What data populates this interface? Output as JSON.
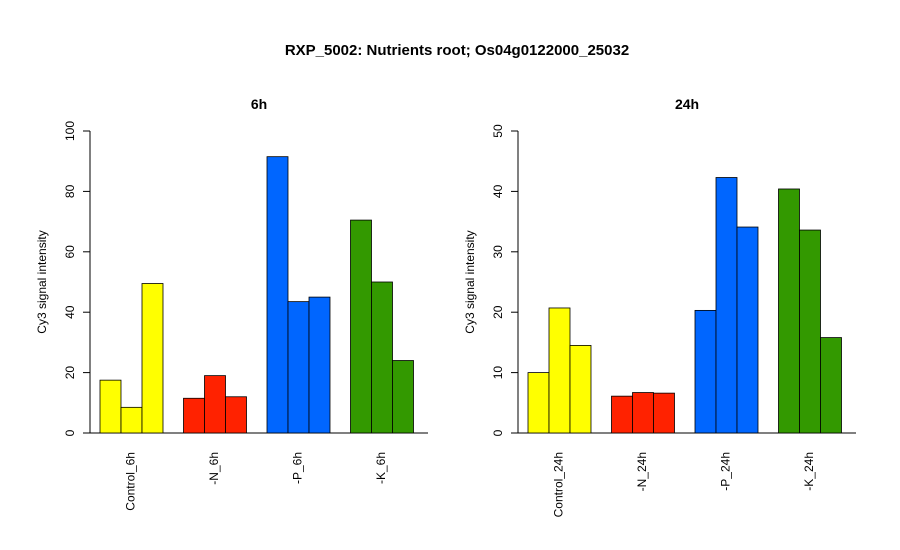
{
  "title": "RXP_5002: Nutrients root; Os04g0122000_25032",
  "chart_data": [
    {
      "type": "bar",
      "title": "6h",
      "ylabel": "Cy3 signal intensity",
      "xlabel": "",
      "ylim": [
        0,
        100
      ],
      "yticks": [
        0,
        20,
        40,
        60,
        80,
        100
      ],
      "groups": [
        {
          "label": "Control_6h",
          "color": "#ffff00",
          "values": [
            17.5,
            8.5,
            49.5
          ]
        },
        {
          "label": "-N_6h",
          "color": "#ff2200",
          "values": [
            11.5,
            19,
            12
          ]
        },
        {
          "label": "-P_6h",
          "color": "#0066ff",
          "values": [
            91.5,
            43.5,
            45
          ]
        },
        {
          "label": "-K_6h",
          "color": "#339900",
          "values": [
            70.5,
            50,
            24
          ]
        }
      ]
    },
    {
      "type": "bar",
      "title": "24h",
      "ylabel": "Cy3 signal intensity",
      "xlabel": "",
      "ylim": [
        0,
        50
      ],
      "yticks": [
        0,
        10,
        20,
        30,
        40,
        50
      ],
      "groups": [
        {
          "label": "Control_24h",
          "color": "#ffff00",
          "values": [
            10,
            20.7,
            14.5
          ]
        },
        {
          "label": "-N_24h",
          "color": "#ff2200",
          "values": [
            6.1,
            6.7,
            6.6
          ]
        },
        {
          "label": "-P_24h",
          "color": "#0066ff",
          "values": [
            20.3,
            42.3,
            34.1
          ]
        },
        {
          "label": "-K_24h",
          "color": "#339900",
          "values": [
            40.4,
            33.6,
            15.8
          ]
        }
      ]
    }
  ]
}
